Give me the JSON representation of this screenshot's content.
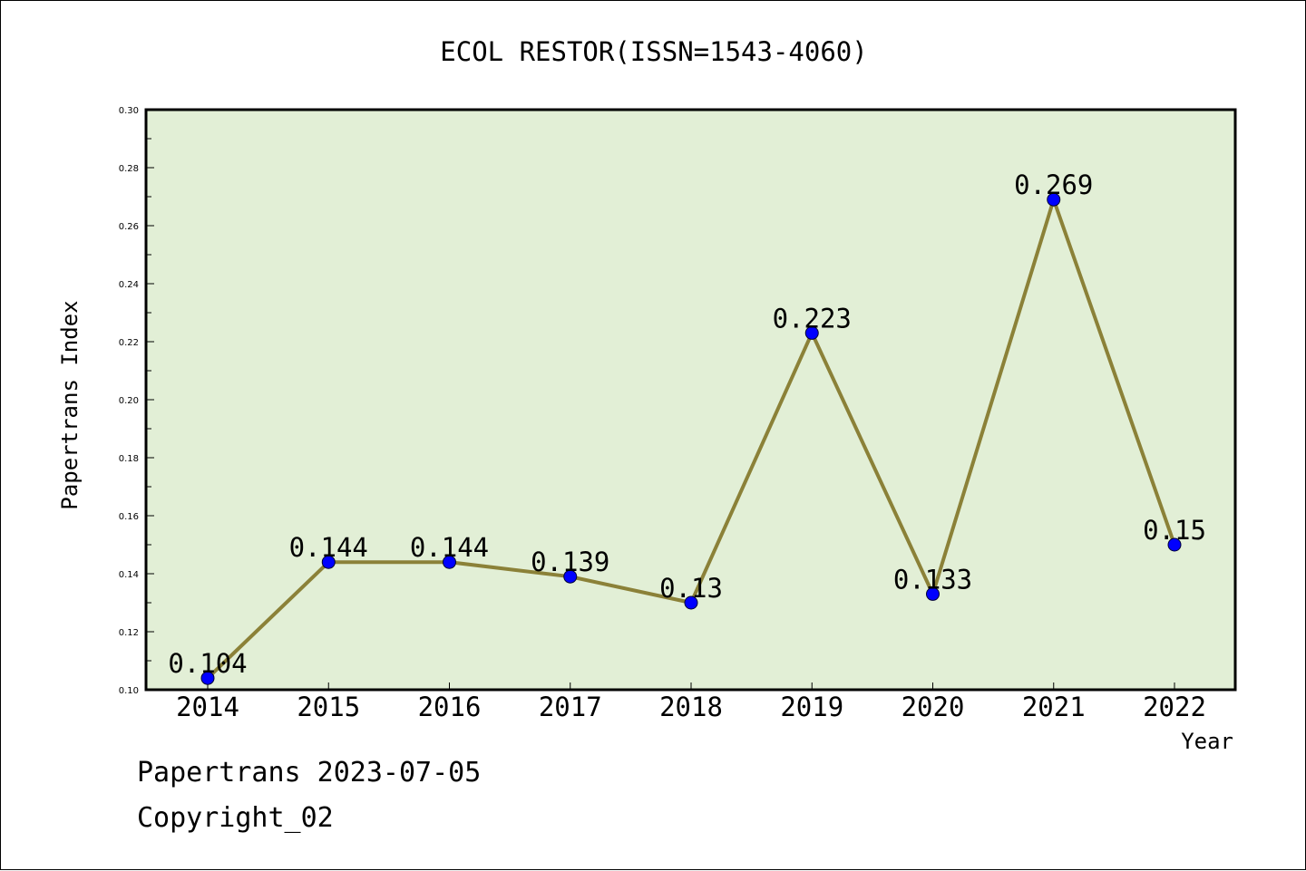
{
  "chart_data": {
    "type": "line",
    "title": "ECOL RESTOR(ISSN=1543-4060)",
    "xlabel": "Year",
    "ylabel": "Papertrans Index",
    "categories": [
      "2014",
      "2015",
      "2016",
      "2017",
      "2018",
      "2019",
      "2020",
      "2021",
      "2022"
    ],
    "series": [
      {
        "values": [
          0.104,
          0.144,
          0.144,
          0.139,
          0.13,
          0.223,
          0.133,
          0.269,
          0.15
        ],
        "data_labels": [
          "0.104",
          "0.144",
          "0.144",
          "0.139",
          "0.13",
          "0.223",
          "0.133",
          "0.269",
          "0.15"
        ]
      }
    ],
    "ylim": [
      0.1,
      0.3
    ],
    "yticks": [
      "0.10",
      "0.12",
      "0.14",
      "0.16",
      "0.18",
      "0.20",
      "0.22",
      "0.24",
      "0.26",
      "0.28",
      "0.30"
    ],
    "grid": false,
    "colors": {
      "plot_background": "#e2efd6",
      "line": "#8b8138",
      "marker": "#0000ff",
      "axis": "#000000"
    }
  },
  "footer": {
    "line1": "Papertrans 2023-07-05",
    "line2": "Copyright_02"
  }
}
